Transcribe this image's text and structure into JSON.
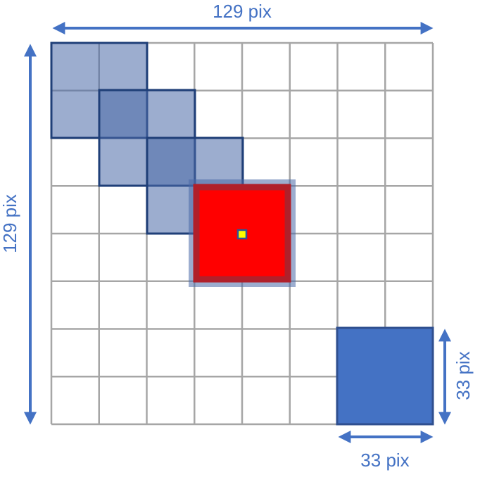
{
  "labels": {
    "top_width": "129 pix",
    "left_height": "129 pix",
    "window_height": "33 pix",
    "window_width": "33 pix"
  }
}
